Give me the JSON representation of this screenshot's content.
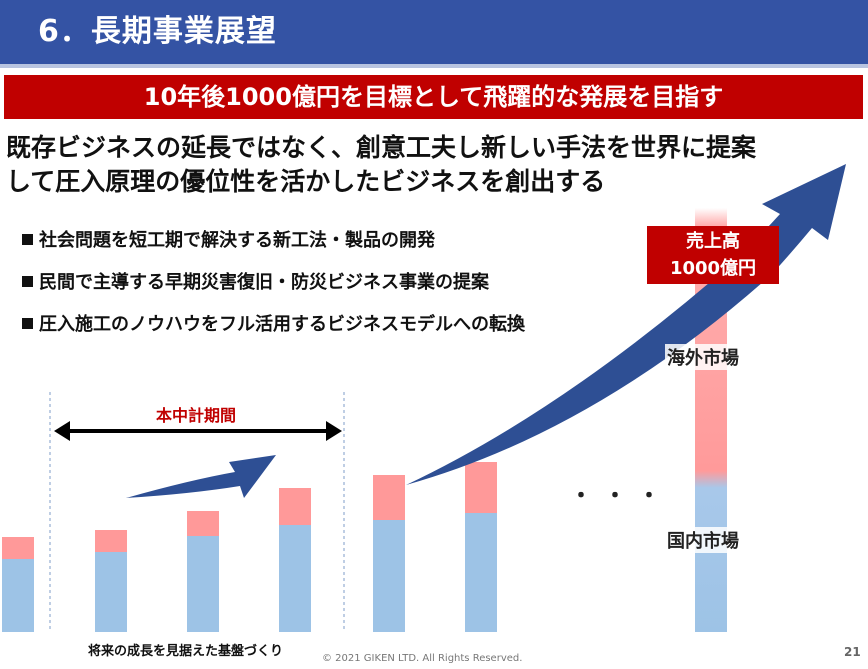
{
  "header": {
    "title": "6．長期事業展望"
  },
  "banner": {
    "text": "10年後1000億円を目標として飛躍的な発展を目指す"
  },
  "lead": {
    "line1": "既存ビジネスの延長ではなく、創意工夫し新しい手法を世界に提案",
    "line2": "して圧入原理の優位性を活かしたビジネスを創出する"
  },
  "bullets": [
    "社会問題を短工期で解決する新工法・製品の開発",
    "民間で主導する早期災害復旧・防災ビジネス事業の提案",
    "圧入施工のノウハウをフル活用するビジネスモデルへの転換"
  ],
  "chart": {
    "term_label": "本中計期間",
    "sales_line1": "売上高",
    "sales_line2": "1000億円",
    "overseas_label": "海外市場",
    "domestic_label": "国内市場",
    "ellipsis": "・・・",
    "foundation_label": "将来の成長を見据えた基盤づくり"
  },
  "colors": {
    "header": "#3453a4",
    "banner": "#c00000",
    "domestic": "#9dc3e6",
    "overseas": "#ff9999",
    "arrow": "#2e4f94"
  },
  "footer": {
    "copyright": "© 2021 GIKEN LTD. All Rights Reserved.",
    "page": "21"
  }
}
